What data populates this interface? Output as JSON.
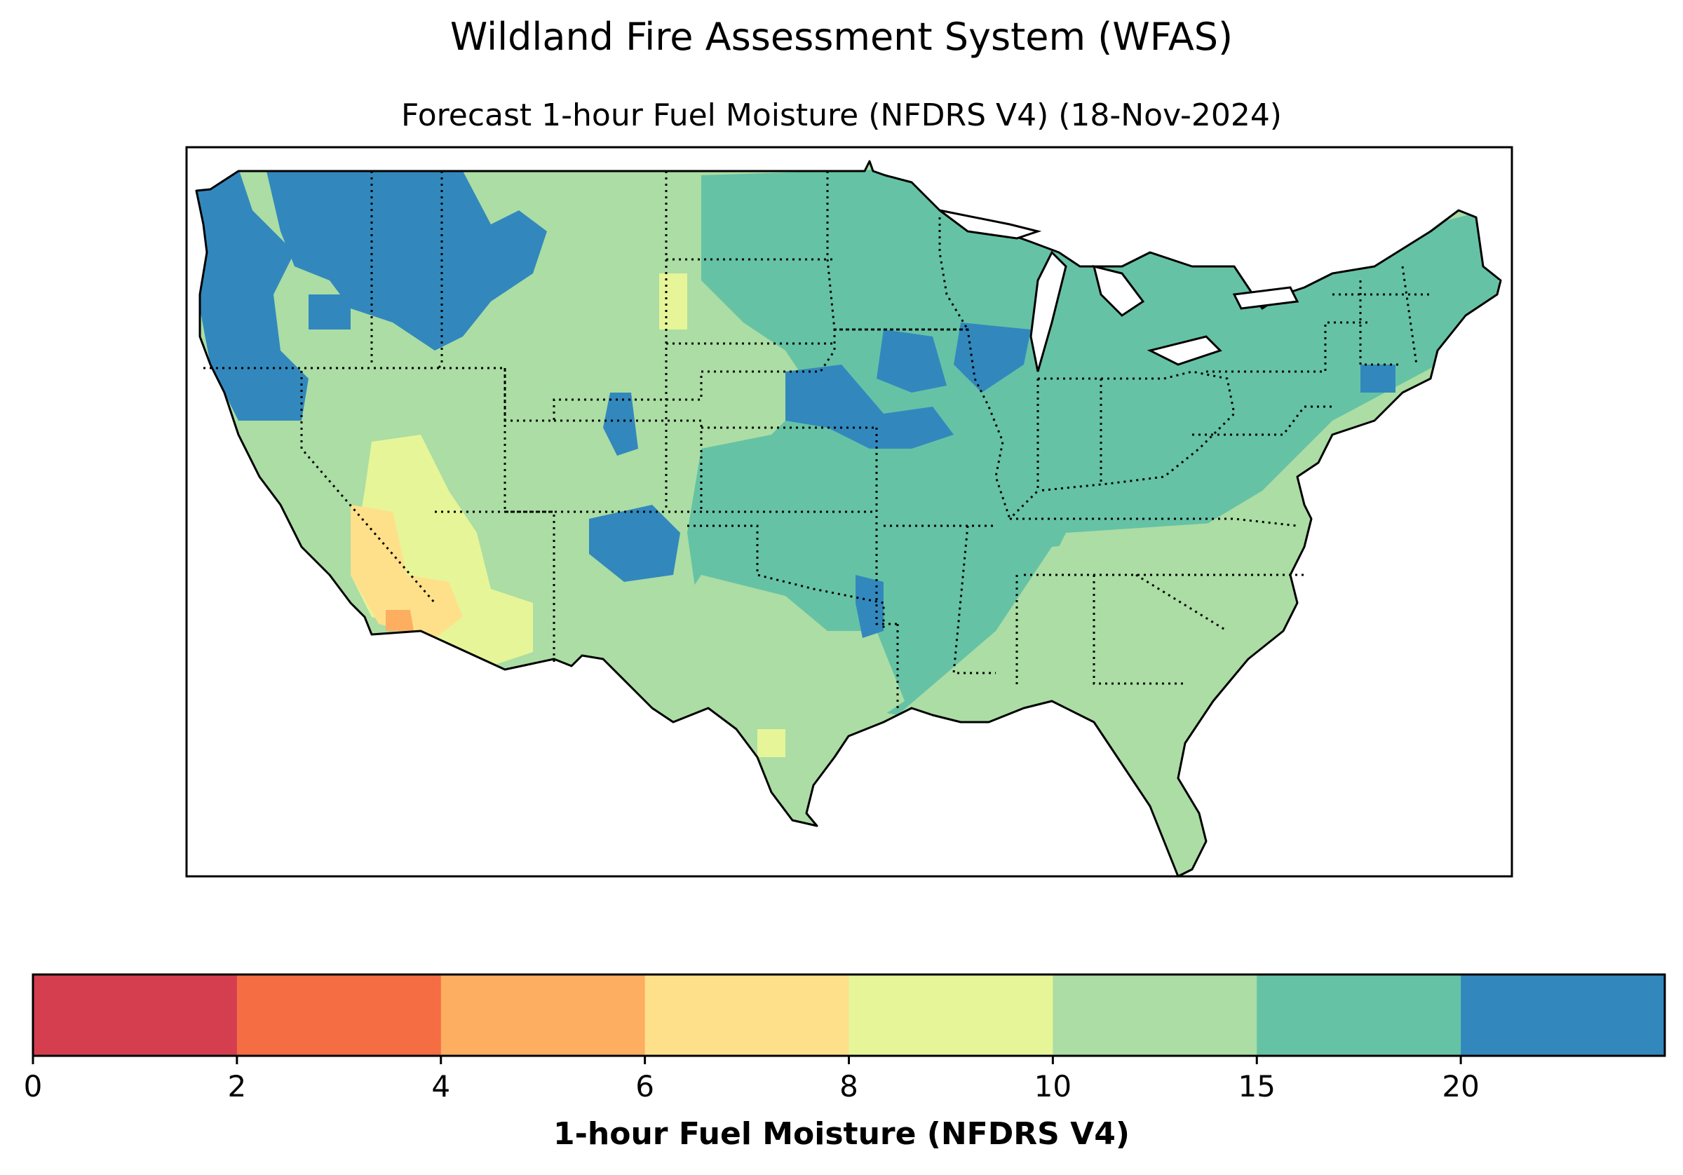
{
  "title": "Wildland Fire Assessment System (WFAS)",
  "subtitle": "Forecast 1-hour Fuel Moisture (NFDRS V4) (18-Nov-2024)",
  "colorbar": {
    "label": "1-hour Fuel Moisture (NFDRS V4)",
    "classes": [
      {
        "range": "0-2",
        "color": "#d53e4f"
      },
      {
        "range": "2-4",
        "color": "#f46d43"
      },
      {
        "range": "4-6",
        "color": "#fdae61"
      },
      {
        "range": "6-8",
        "color": "#fee08b"
      },
      {
        "range": "8-10",
        "color": "#e6f598"
      },
      {
        "range": "10-15",
        "color": "#abdda4"
      },
      {
        "range": "15-20",
        "color": "#66c2a5"
      },
      {
        "range": "20+",
        "color": "#3288bd"
      }
    ],
    "ticks": [
      "0",
      "2",
      "4",
      "6",
      "8",
      "10",
      "15",
      "20"
    ]
  },
  "map_regions": {
    "pacific_northwest_coast": "#3288bd",
    "northern_rockies": "#3288bd",
    "great_plains": "#abdda4",
    "midwest_central": "#66c2a5",
    "southwest_desert": "#fee08b",
    "southeast": "#abdda4",
    "northeast": "#66c2a5"
  }
}
